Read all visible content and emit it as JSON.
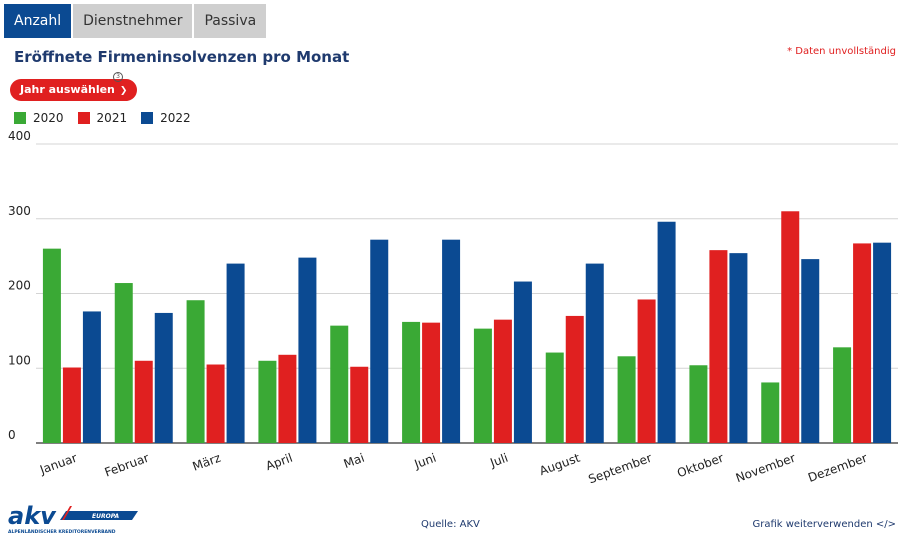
{
  "tabs": [
    {
      "label": "Anzahl",
      "active": true
    },
    {
      "label": "Dienstnehmer",
      "active": false
    },
    {
      "label": "Passiva",
      "active": false
    }
  ],
  "header": {
    "title": "Eröffnete Firmeninsolvenzen pro Monat",
    "note": "* Daten unvollständig"
  },
  "controls": {
    "year_button": "Jahr auswählen",
    "info_icon": "3"
  },
  "colors": {
    "tab_active": "#0b4a92",
    "title": "#1f3a6e",
    "accent_red": "#e02020"
  },
  "chart_data": {
    "type": "bar",
    "categories": [
      "Januar",
      "Februar",
      "März",
      "April",
      "Mai",
      "Juni",
      "Juli",
      "August",
      "September",
      "Oktober",
      "November",
      "Dezember"
    ],
    "series": [
      {
        "name": "2020",
        "color": "#3aa935",
        "values": [
          260,
          214,
          191,
          110,
          157,
          162,
          153,
          121,
          116,
          104,
          81,
          128
        ]
      },
      {
        "name": "2021",
        "color": "#e02020",
        "values": [
          101,
          110,
          105,
          118,
          102,
          161,
          165,
          170,
          192,
          258,
          310,
          267
        ]
      },
      {
        "name": "2022",
        "color": "#0b4a92",
        "values": [
          176,
          174,
          240,
          248,
          272,
          272,
          216,
          240,
          296,
          254,
          246,
          268
        ]
      }
    ],
    "yticks": [
      0,
      100,
      200,
      300,
      400
    ],
    "ylim": [
      0,
      400
    ],
    "grid": true,
    "legend": "top-left"
  },
  "footer": {
    "logo_text": "akv",
    "logo_badge": "EUROPA",
    "logo_subtitle": "ALPENLÄNDISCHER KREDITORENVERBAND",
    "source": "Quelle: AKV",
    "reuse_link": "Grafik weiterverwenden </>"
  }
}
